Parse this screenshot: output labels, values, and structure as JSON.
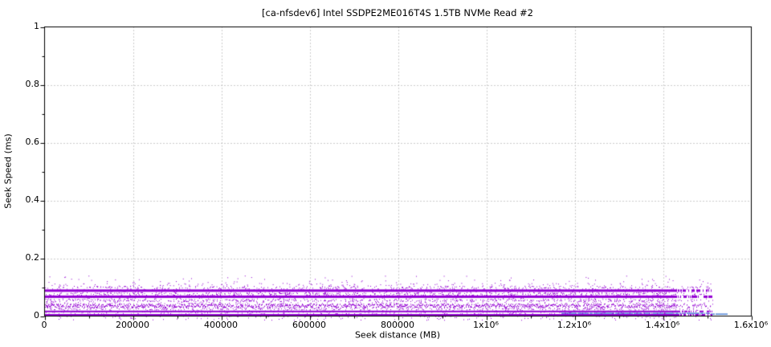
{
  "window": {
    "background": "#ffffff"
  },
  "chart_data": {
    "type": "scatter",
    "title": "[ca-nfsdev6] Intel SSDPE2ME016T4S 1.5TB NVMe Read #2",
    "xlabel": "Seek distance (MB)",
    "ylabel": "Seek Speed (ms)",
    "xlim": [
      0,
      1600000
    ],
    "ylim": [
      0,
      1
    ],
    "x_tick_values": [
      0,
      200000,
      400000,
      600000,
      800000,
      1000000,
      1200000,
      1400000,
      1600000
    ],
    "x_tick_labels": [
      "0",
      "200000",
      "400000",
      "600000",
      "800000",
      "1x10⁶",
      "1.2x10⁶",
      "1.4x10⁶",
      "1.6x10⁶"
    ],
    "y_tick_values": [
      0,
      0.2,
      0.4,
      0.6,
      0.8,
      1
    ],
    "y_tick_labels": [
      "0",
      "0.2",
      "0.4",
      "0.6",
      "0.8",
      "1"
    ],
    "minor_tick_step_x": 100000,
    "minor_tick_step_y": 0.1,
    "grid": true,
    "grid_color": "#9c9c9c",
    "frame_color": "#000000",
    "series": [
      {
        "name": "baseline-line",
        "type": "line",
        "color": "#5b8dd9",
        "y": 0.0095,
        "x_start": 1170000,
        "x_end": 1545000,
        "gap_probability": 0.12,
        "end_step_x": 1505000
      },
      {
        "name": "seek-points",
        "type": "scatter-bands",
        "color": "#9400d3",
        "x_start": 0,
        "x_end": 1512000,
        "fade_start": 1430000,
        "fade_keep": 0.55,
        "bands": [
          {
            "y": 0.088,
            "style": "solid",
            "thickness": 3,
            "halo": 0.3
          },
          {
            "y": 0.067,
            "style": "solid",
            "thickness": 3,
            "halo": 0.3
          },
          {
            "y": 0.0375,
            "style": "speckle",
            "density": 0.8,
            "halo": 0.45
          },
          {
            "y": 0.016,
            "style": "solid",
            "thickness": 2,
            "halo": 0.4
          },
          {
            "y": 0.0035,
            "style": "solid",
            "thickness": 2.5,
            "halo": 0.15
          }
        ],
        "scatter": {
          "y_min": 0.0,
          "y_max": 0.115,
          "count": 1700
        },
        "outliers": {
          "y_min": 0.115,
          "y_max": 0.14,
          "count": 70
        }
      }
    ]
  }
}
